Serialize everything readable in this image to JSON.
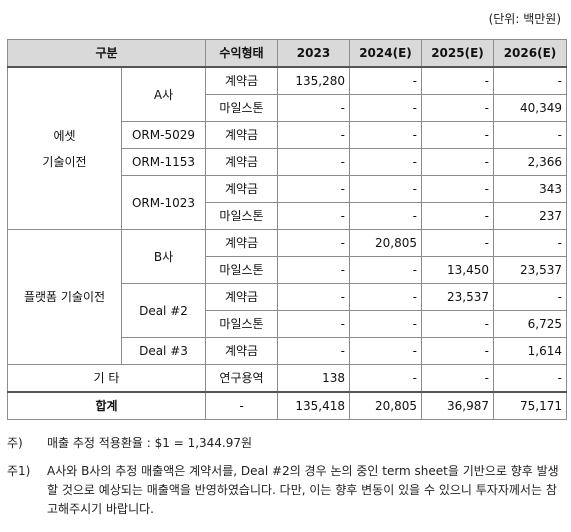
{
  "unit_label": "(단위: 백만원)",
  "headers": [
    "구분",
    "수익형태",
    "2023",
    "2024(E)",
    "2025(E)",
    "2026(E)"
  ],
  "groups": {
    "asset_tech_transfer": "에셋\n기술이전",
    "platform_tech_transfer": "플랫폼 기술이전"
  },
  "rows": [
    {
      "sub": "A사",
      "type": "계약금",
      "v": [
        "135,280",
        "-",
        "-",
        "-"
      ]
    },
    {
      "type": "마일스톤",
      "v": [
        "-",
        "-",
        "-",
        "40,349"
      ]
    },
    {
      "sub": "ORM-5029",
      "type": "계약금",
      "v": [
        "-",
        "-",
        "-",
        "-"
      ]
    },
    {
      "sub": "ORM-1153",
      "type": "계약금",
      "v": [
        "-",
        "-",
        "-",
        "2,366"
      ]
    },
    {
      "sub": "ORM-1023",
      "type": "계약금",
      "v": [
        "-",
        "-",
        "-",
        "343"
      ]
    },
    {
      "type": "마일스톤",
      "v": [
        "-",
        "-",
        "-",
        "237"
      ]
    },
    {
      "sub": "B사",
      "type": "계약금",
      "v": [
        "-",
        "20,805",
        "-",
        "-"
      ]
    },
    {
      "type": "마일스톤",
      "v": [
        "-",
        "-",
        "13,450",
        "23,537"
      ]
    },
    {
      "sub": "Deal #2",
      "type": "계약금",
      "v": [
        "-",
        "-",
        "23,537",
        "-"
      ]
    },
    {
      "type": "마일스톤",
      "v": [
        "-",
        "-",
        "-",
        "6,725"
      ]
    },
    {
      "sub": "Deal #3",
      "type": "계약금",
      "v": [
        "-",
        "-",
        "-",
        "1,614"
      ]
    }
  ],
  "other": {
    "label": "기 타",
    "type": "연구용역",
    "v": [
      "138",
      "-",
      "-",
      "-"
    ]
  },
  "total": {
    "label": "합계",
    "type": "-",
    "v": [
      "135,418",
      "20,805",
      "36,987",
      "75,171"
    ]
  },
  "notes": {
    "note1_label": "주)",
    "note1_text": "매출 추정 적용환율 : $1 = 1,344.97원",
    "note2_label": "주1)",
    "note2_text": "A사와 B사의 추정 매출액은 계약서를, Deal #2의 경우 논의 중인 term sheet을 기반으로 향후 발생할 것으로 예상되는 매출액을 반영하였습니다. 다만, 이는 향후 변동이 있을 수 있으니 투자자께서는 참고해주시기 바랍니다."
  }
}
